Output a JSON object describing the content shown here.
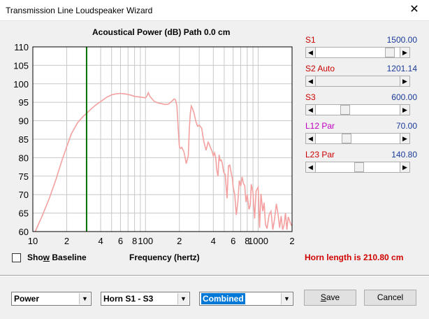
{
  "window": {
    "title": "Transmission Line Loudspeaker Wizard",
    "close_glyph": "✕"
  },
  "chart_data": {
    "type": "line",
    "title": "Acoustical Power (dB)   Path 0.0 cm",
    "xlabel": "Frequency (hertz)",
    "ylabel": "",
    "x_scale": "log",
    "xlim": [
      10,
      2000
    ],
    "ylim": [
      60,
      110
    ],
    "y_ticks": [
      60,
      65,
      70,
      75,
      80,
      85,
      90,
      95,
      100,
      105,
      110
    ],
    "x_tick_labels": [
      {
        "x": 10,
        "label": "10"
      },
      {
        "x": 20,
        "label": "2"
      },
      {
        "x": 40,
        "label": "4"
      },
      {
        "x": 60,
        "label": "6"
      },
      {
        "x": 80,
        "label": "8"
      },
      {
        "x": 100,
        "label": "100"
      },
      {
        "x": 200,
        "label": "2"
      },
      {
        "x": 400,
        "label": "4"
      },
      {
        "x": 600,
        "label": "6"
      },
      {
        "x": 800,
        "label": "8"
      },
      {
        "x": 1000,
        "label": "1000"
      },
      {
        "x": 2000,
        "label": "2"
      }
    ],
    "grid": true,
    "marker_frequency": 30,
    "marker_color": "#007000",
    "series_color": "#f4a0a0",
    "series": [
      {
        "x": [
          10.5,
          12,
          14,
          16,
          18,
          20,
          22,
          25,
          28,
          30,
          33,
          36,
          40,
          45,
          50,
          55,
          60,
          65,
          70,
          75,
          80,
          85,
          90,
          95,
          100,
          103,
          106,
          110,
          120,
          130,
          140,
          150,
          160,
          170,
          180,
          185,
          190,
          195,
          200,
          205,
          210,
          220,
          230,
          240,
          245,
          250,
          255,
          262,
          270,
          280,
          290,
          300,
          315,
          330,
          345,
          360,
          370,
          380,
          390,
          400,
          410,
          420,
          430,
          440,
          450,
          460,
          470,
          480,
          495,
          510,
          530,
          545,
          560,
          575,
          590,
          600,
          620,
          640,
          660,
          680,
          700,
          720,
          740,
          760,
          780,
          800,
          830,
          850,
          870,
          900,
          930,
          960,
          1000,
          1030,
          1060,
          1100,
          1130,
          1160,
          1200,
          1250,
          1300,
          1350,
          1400,
          1450,
          1500,
          1550,
          1600,
          1650,
          1700,
          1750,
          1800,
          1850,
          1900,
          1950,
          2000
        ],
        "y": [
          60,
          64,
          69,
          74,
          79,
          83,
          86.5,
          89.5,
          91.2,
          92,
          93.2,
          94.2,
          95.2,
          96.3,
          97,
          97.3,
          97.4,
          97.3,
          97.1,
          96.9,
          96.6,
          96.5,
          96.4,
          96.3,
          96.2,
          96.7,
          97.6,
          96.5,
          95.2,
          94.8,
          94.6,
          94.4,
          94.5,
          95.2,
          95.9,
          95.6,
          94,
          88,
          82.8,
          82.5,
          82.8,
          81.5,
          78.4,
          80.5,
          88,
          92,
          94,
          93.2,
          92,
          89.8,
          88.5,
          88.8,
          88,
          84.3,
          82,
          84.2,
          83.5,
          82.5,
          81.8,
          80.5,
          81.3,
          80,
          76.5,
          75,
          80.8,
          79.2,
          79.4,
          78.5,
          76,
          75.5,
          69,
          77.8,
          78,
          76,
          74.5,
          72,
          70,
          64.5,
          68,
          73.8,
          72.3,
          74.8,
          73,
          72.5,
          68,
          70,
          66,
          67,
          72.8,
          70.5,
          63.5,
          71,
          72,
          61,
          70.2,
          65.5,
          67.8,
          62,
          60.8,
          64.5,
          65.5,
          60.5,
          63.5,
          67.5,
          64.8,
          61,
          64.2,
          60.5,
          61.8,
          65,
          60.5,
          64,
          63,
          62,
          61.5
        ]
      }
    ]
  },
  "sliders": [
    {
      "label": "S1",
      "tag": "",
      "value": "1500.00",
      "label_color": "#cc0000",
      "level": 0.93
    },
    {
      "label": "S2",
      "tag": "Auto",
      "value": "1201.14",
      "label_color": "#cc0000",
      "level": null
    },
    {
      "label": "S3",
      "tag": "",
      "value": "600.00",
      "label_color": "#cc0000",
      "level": 0.33
    },
    {
      "label": "L12",
      "tag": "Par",
      "value": "70.00",
      "label_color": "#c000c0",
      "level": 0.35
    },
    {
      "label": "L23",
      "tag": "Par",
      "value": "140.80",
      "label_color": "#cc0000",
      "level": 0.52
    }
  ],
  "checkbox": {
    "label_before": "Sho",
    "label_underlined": "w",
    "label_after": " Baseline",
    "checked": false
  },
  "status": {
    "horn_length": "Horn length is 210.80 cm"
  },
  "combos": [
    {
      "value": "Power"
    },
    {
      "value": "Horn S1 - S3"
    },
    {
      "value": "Combined"
    }
  ],
  "buttons": {
    "save_under": "S",
    "save_rest": "ave",
    "cancel": "Cancel"
  }
}
